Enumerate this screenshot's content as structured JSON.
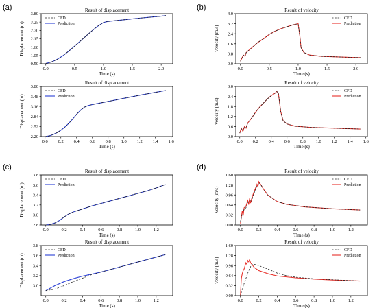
{
  "colors": {
    "cfd": "#222222",
    "prediction_disp": "#2a3fd6",
    "prediction_vel": "#e8302a"
  },
  "panels": [
    "(a)",
    "(b)",
    "(c)",
    "(d)"
  ],
  "chart_data": [
    {
      "panel": "(a)",
      "type": "line",
      "title": "Result of displacement",
      "xlabel": "Time (s)",
      "ylabel": "Displacement (m)",
      "xlim": [
        -0.08,
        2.2
      ],
      "ylim": [
        0.5,
        3.8
      ],
      "xticks": [
        0.0,
        0.5,
        1.0,
        1.5,
        2.0
      ],
      "xtick_labels": [
        "0.0",
        "0.5",
        "1.0",
        "1.5",
        "2.0"
      ],
      "yticks": [
        0.5,
        1.05,
        1.6,
        2.15,
        2.7,
        3.25,
        3.8
      ],
      "ytick_labels": [
        "0.50",
        "1.05",
        "1.60",
        "2.15",
        "2.70",
        "3.25",
        "3.80"
      ],
      "legend": "top-left",
      "series": [
        {
          "name": "CFD",
          "style": "dashed",
          "color": "#222222",
          "x": [
            0,
            0.1,
            0.2,
            0.3,
            0.4,
            0.5,
            0.6,
            0.7,
            0.8,
            0.9,
            1.0,
            1.05,
            1.1,
            1.2,
            1.4,
            1.6,
            1.8,
            2.0,
            2.08
          ],
          "y": [
            0.52,
            0.62,
            0.8,
            1.04,
            1.34,
            1.67,
            2.0,
            2.34,
            2.67,
            2.98,
            3.22,
            3.27,
            3.3,
            3.34,
            3.42,
            3.5,
            3.57,
            3.64,
            3.68
          ]
        },
        {
          "name": "Prediction",
          "style": "solid",
          "color": "#2a3fd6",
          "x": [
            0,
            0.1,
            0.2,
            0.3,
            0.4,
            0.5,
            0.6,
            0.7,
            0.8,
            0.9,
            1.0,
            1.05,
            1.1,
            1.2,
            1.4,
            1.6,
            1.8,
            2.0,
            2.08
          ],
          "y": [
            0.52,
            0.62,
            0.8,
            1.04,
            1.34,
            1.67,
            2.0,
            2.34,
            2.67,
            2.98,
            3.22,
            3.27,
            3.3,
            3.34,
            3.42,
            3.5,
            3.57,
            3.64,
            3.68
          ]
        }
      ]
    },
    {
      "panel": "(a)",
      "type": "line",
      "title": "Result of velocity",
      "xlabel": "Time (s)",
      "ylabel": "Velocity (m/s)",
      "xlim": [
        -0.08,
        2.2
      ],
      "ylim": [
        0.0,
        4.0
      ],
      "xticks": [
        0.0,
        0.5,
        1.0,
        1.5,
        2.0
      ],
      "xtick_labels": [
        "0.0",
        "0.5",
        "1.0",
        "1.5",
        "2.0"
      ],
      "yticks": [
        0.0,
        0.8,
        1.6,
        2.4,
        3.2,
        4.0
      ],
      "ytick_labels": [
        "0.0",
        "0.8",
        "1.6",
        "2.4",
        "3.2",
        "4.0"
      ],
      "legend": "top-right",
      "series": [
        {
          "name": "CFD",
          "style": "dashed",
          "color": "#222222",
          "x": [
            0,
            0.03,
            0.05,
            0.08,
            0.1,
            0.2,
            0.3,
            0.4,
            0.5,
            0.6,
            0.7,
            0.8,
            0.9,
            0.95,
            1.0,
            1.03,
            1.05,
            1.1,
            1.2,
            1.4,
            1.7,
            2.08
          ],
          "y": [
            0.2,
            0.5,
            0.7,
            0.6,
            0.9,
            1.3,
            1.7,
            2.0,
            2.35,
            2.6,
            2.8,
            2.95,
            3.1,
            3.15,
            3.2,
            2.2,
            1.3,
            0.9,
            0.7,
            0.6,
            0.55,
            0.5
          ]
        },
        {
          "name": "Prediction",
          "style": "solid",
          "color": "#e8302a",
          "x": [
            0,
            0.03,
            0.05,
            0.08,
            0.1,
            0.2,
            0.3,
            0.4,
            0.5,
            0.6,
            0.7,
            0.8,
            0.9,
            0.95,
            1.0,
            1.03,
            1.05,
            1.1,
            1.2,
            1.4,
            1.7,
            2.08
          ],
          "y": [
            0.2,
            0.5,
            0.7,
            0.6,
            0.9,
            1.3,
            1.7,
            2.0,
            2.35,
            2.6,
            2.8,
            2.95,
            3.1,
            3.15,
            3.2,
            2.2,
            1.3,
            0.9,
            0.7,
            0.6,
            0.55,
            0.5
          ]
        }
      ]
    },
    {
      "panel": "(b)",
      "type": "line",
      "title": "Result of displacement",
      "xlabel": "Time (s)",
      "ylabel": "Displacement (m)",
      "xlim": [
        -0.05,
        1.62
      ],
      "ylim": [
        2.2,
        3.8
      ],
      "xticks": [
        0.0,
        0.2,
        0.4,
        0.6,
        0.8,
        1.0,
        1.2,
        1.4,
        1.6
      ],
      "xtick_labels": [
        "0.0",
        "0.2",
        "0.4",
        "0.6",
        "0.8",
        "1.0",
        "1.2",
        "1.4",
        "1.6"
      ],
      "yticks": [
        2.2,
        2.52,
        2.84,
        3.16,
        3.48,
        3.8
      ],
      "ytick_labels": [
        "2.20",
        "2.52",
        "2.84",
        "3.16",
        "3.48",
        "3.80"
      ],
      "legend": "top-left",
      "series": [
        {
          "name": "CFD",
          "style": "dashed",
          "color": "#222222",
          "x": [
            0,
            0.05,
            0.1,
            0.15,
            0.2,
            0.25,
            0.3,
            0.35,
            0.4,
            0.45,
            0.5,
            0.55,
            0.6,
            0.8,
            1.0,
            1.2,
            1.4,
            1.53
          ],
          "y": [
            2.2,
            2.22,
            2.26,
            2.32,
            2.4,
            2.5,
            2.62,
            2.76,
            2.91,
            3.04,
            3.14,
            3.19,
            3.22,
            3.32,
            3.42,
            3.52,
            3.61,
            3.67
          ]
        },
        {
          "name": "Prediction",
          "style": "solid",
          "color": "#2a3fd6",
          "x": [
            0,
            0.05,
            0.1,
            0.15,
            0.2,
            0.25,
            0.3,
            0.35,
            0.4,
            0.45,
            0.5,
            0.55,
            0.6,
            0.8,
            1.0,
            1.2,
            1.4,
            1.53
          ],
          "y": [
            2.2,
            2.22,
            2.26,
            2.32,
            2.4,
            2.5,
            2.62,
            2.76,
            2.91,
            3.04,
            3.14,
            3.19,
            3.22,
            3.32,
            3.42,
            3.52,
            3.61,
            3.67
          ]
        }
      ]
    },
    {
      "panel": "(b)",
      "type": "line",
      "title": "Result of velocity",
      "xlabel": "Time (s)",
      "ylabel": "Velocity (m/s)",
      "xlim": [
        -0.05,
        1.62
      ],
      "ylim": [
        0.0,
        3.0
      ],
      "xticks": [
        0.0,
        0.2,
        0.4,
        0.6,
        0.8,
        1.0,
        1.2,
        1.4,
        1.6
      ],
      "xtick_labels": [
        "0.0",
        "0.2",
        "0.4",
        "0.6",
        "0.8",
        "1.0",
        "1.2",
        "1.4",
        "1.6"
      ],
      "yticks": [
        0.0,
        0.6,
        1.2,
        1.8,
        2.4,
        3.0
      ],
      "ytick_labels": [
        "0.0",
        "0.6",
        "1.2",
        "1.8",
        "2.4",
        "3.0"
      ],
      "legend": "top-right",
      "series": [
        {
          "name": "CFD",
          "style": "dashed",
          "color": "#222222",
          "x": [
            0,
            0.02,
            0.04,
            0.06,
            0.08,
            0.1,
            0.15,
            0.2,
            0.25,
            0.3,
            0.35,
            0.4,
            0.45,
            0.47,
            0.49,
            0.52,
            0.55,
            0.6,
            0.7,
            0.9,
            1.2,
            1.53
          ],
          "y": [
            0.2,
            0.5,
            0.3,
            0.6,
            0.5,
            0.8,
            1.1,
            1.45,
            1.75,
            2.0,
            2.25,
            2.45,
            2.6,
            2.7,
            2.6,
            1.5,
            0.95,
            0.75,
            0.62,
            0.55,
            0.5,
            0.45
          ]
        },
        {
          "name": "Prediction",
          "style": "solid",
          "color": "#e8302a",
          "x": [
            0,
            0.02,
            0.04,
            0.06,
            0.08,
            0.1,
            0.15,
            0.2,
            0.25,
            0.3,
            0.35,
            0.4,
            0.45,
            0.47,
            0.49,
            0.52,
            0.55,
            0.6,
            0.7,
            0.9,
            1.2,
            1.53
          ],
          "y": [
            0.2,
            0.5,
            0.3,
            0.6,
            0.5,
            0.8,
            1.1,
            1.45,
            1.75,
            2.0,
            2.25,
            2.45,
            2.6,
            2.7,
            2.6,
            1.5,
            0.95,
            0.75,
            0.62,
            0.55,
            0.5,
            0.45
          ]
        }
      ]
    },
    {
      "panel": "(c)",
      "type": "line",
      "title": "Result of displacement",
      "xlabel": "Time (s)",
      "ylabel": "Displacement (m)",
      "xlim": [
        -0.05,
        1.38
      ],
      "ylim": [
        2.8,
        3.8
      ],
      "xticks": [
        0.0,
        0.2,
        0.4,
        0.6,
        0.8,
        1.0,
        1.2
      ],
      "xtick_labels": [
        "0.0",
        "0.2",
        "0.4",
        "0.6",
        "0.8",
        "1.0",
        "1.2"
      ],
      "yticks": [
        2.8,
        3.0,
        3.2,
        3.4,
        3.6,
        3.8
      ],
      "ytick_labels": [
        "2.8",
        "3.0",
        "3.2",
        "3.4",
        "3.6",
        "3.8"
      ],
      "legend": "top-left",
      "series": [
        {
          "name": "CFD",
          "style": "dashed",
          "color": "#222222",
          "x": [
            0,
            0.05,
            0.1,
            0.15,
            0.2,
            0.25,
            0.3,
            0.4,
            0.5,
            0.6,
            0.7,
            0.8,
            0.9,
            1.0,
            1.1,
            1.2,
            1.3
          ],
          "y": [
            2.8,
            2.81,
            2.84,
            2.89,
            2.96,
            3.02,
            3.06,
            3.12,
            3.18,
            3.23,
            3.28,
            3.33,
            3.38,
            3.43,
            3.48,
            3.54,
            3.61
          ]
        },
        {
          "name": "Prediction",
          "style": "solid",
          "color": "#2a3fd6",
          "x": [
            0,
            0.05,
            0.1,
            0.15,
            0.2,
            0.25,
            0.3,
            0.4,
            0.5,
            0.6,
            0.7,
            0.8,
            0.9,
            1.0,
            1.1,
            1.2,
            1.3
          ],
          "y": [
            2.8,
            2.81,
            2.84,
            2.89,
            2.96,
            3.02,
            3.06,
            3.12,
            3.18,
            3.23,
            3.28,
            3.33,
            3.38,
            3.43,
            3.48,
            3.54,
            3.61
          ]
        }
      ]
    },
    {
      "panel": "(c)",
      "type": "line",
      "title": "Result of velocity",
      "xlabel": "Time (s)",
      "ylabel": "Velocity (m/s)",
      "xlim": [
        -0.05,
        1.38
      ],
      "ylim": [
        0.0,
        1.6
      ],
      "xticks": [
        0.0,
        0.2,
        0.4,
        0.6,
        0.8,
        1.0,
        1.2
      ],
      "xtick_labels": [
        "0.0",
        "0.2",
        "0.4",
        "0.6",
        "0.8",
        "1.0",
        "1.2"
      ],
      "yticks": [
        0.0,
        0.32,
        0.64,
        0.96,
        1.28,
        1.6
      ],
      "ytick_labels": [
        "0.00",
        "0.32",
        "0.64",
        "0.96",
        "1.28",
        "1.60"
      ],
      "legend": "top-right",
      "series": [
        {
          "name": "CFD",
          "style": "dashed",
          "color": "#222222",
          "x": [
            0,
            0.02,
            0.04,
            0.06,
            0.08,
            0.1,
            0.12,
            0.14,
            0.16,
            0.18,
            0.2,
            0.22,
            0.25,
            0.3,
            0.4,
            0.5,
            0.7,
            1.0,
            1.3
          ],
          "y": [
            0.1,
            0.35,
            0.5,
            0.55,
            0.7,
            0.8,
            0.75,
            0.95,
            1.1,
            1.25,
            1.35,
            1.3,
            1.15,
            0.95,
            0.75,
            0.66,
            0.58,
            0.52,
            0.48
          ]
        },
        {
          "name": "Prediction",
          "style": "solid",
          "color": "#e8302a",
          "x": [
            0,
            0.02,
            0.03,
            0.04,
            0.06,
            0.08,
            0.09,
            0.1,
            0.11,
            0.12,
            0.14,
            0.16,
            0.18,
            0.19,
            0.2,
            0.21,
            0.22,
            0.25,
            0.3,
            0.4,
            0.5,
            0.7,
            1.0,
            1.3
          ],
          "y": [
            0.05,
            0.45,
            0.3,
            0.55,
            0.6,
            0.78,
            0.65,
            0.85,
            0.7,
            0.82,
            1.0,
            1.15,
            1.3,
            1.22,
            1.38,
            1.33,
            1.3,
            1.15,
            0.95,
            0.75,
            0.66,
            0.58,
            0.52,
            0.48
          ]
        }
      ]
    },
    {
      "panel": "(d)",
      "type": "line",
      "title": "Result of displacement",
      "xlabel": "Time (s)",
      "ylabel": "Displacement (m)",
      "xlim": [
        -0.05,
        1.38
      ],
      "ylim": [
        2.8,
        3.8
      ],
      "xticks": [
        0.0,
        0.2,
        0.4,
        0.6,
        0.8,
        1.0,
        1.2
      ],
      "xtick_labels": [
        "0.0",
        "0.2",
        "0.4",
        "0.6",
        "0.8",
        "1.0",
        "1.2"
      ],
      "yticks": [
        3.0,
        3.2,
        3.4,
        3.6,
        3.8
      ],
      "ytick_labels": [
        "3.0",
        "3.2",
        "3.4",
        "3.6",
        "3.8"
      ],
      "legend": "top-left",
      "series": [
        {
          "name": "CFD",
          "style": "dashed",
          "color": "#222222",
          "x": [
            0,
            0.1,
            0.2,
            0.3,
            0.4,
            0.5,
            0.6,
            0.7,
            0.8,
            0.9,
            1.0,
            1.1,
            1.2,
            1.3
          ],
          "y": [
            2.9,
            2.93,
            3.0,
            3.08,
            3.15,
            3.22,
            3.27,
            3.32,
            3.37,
            3.42,
            3.47,
            3.52,
            3.57,
            3.62
          ]
        },
        {
          "name": "Prediction",
          "style": "solid",
          "color": "#2a3fd6",
          "x": [
            0,
            0.1,
            0.2,
            0.3,
            0.4,
            0.5,
            0.6,
            0.7,
            0.8,
            0.9,
            1.0,
            1.1,
            1.2,
            1.3
          ],
          "y": [
            2.9,
            3.0,
            3.08,
            3.14,
            3.19,
            3.23,
            3.27,
            3.32,
            3.37,
            3.42,
            3.47,
            3.52,
            3.57,
            3.62
          ]
        }
      ]
    },
    {
      "panel": "(d)",
      "type": "line",
      "title": "Result of velocity",
      "xlabel": "Time (s)",
      "ylabel": "Velocity (m/s)",
      "xlim": [
        -0.05,
        1.38
      ],
      "ylim": [
        0.0,
        1.6
      ],
      "xticks": [
        0.0,
        0.2,
        0.4,
        0.6,
        0.8,
        1.0,
        1.2
      ],
      "xtick_labels": [
        "0.0",
        "0.2",
        "0.4",
        "0.6",
        "0.8",
        "1.0",
        "1.2"
      ],
      "yticks": [
        0.0,
        0.32,
        0.64,
        0.96,
        1.28,
        1.6
      ],
      "ytick_labels": [
        "0.00",
        "0.32",
        "0.64",
        "0.96",
        "1.28",
        "1.60"
      ],
      "legend": "top-right",
      "series": [
        {
          "name": "CFD",
          "style": "dashed",
          "color": "#222222",
          "x": [
            0,
            0.03,
            0.06,
            0.09,
            0.12,
            0.15,
            0.2,
            0.3,
            0.4,
            0.5,
            0.6,
            0.8,
            1.0,
            1.3
          ],
          "y": [
            0.0,
            0.3,
            0.55,
            0.8,
            0.98,
            1.0,
            0.96,
            0.85,
            0.72,
            0.64,
            0.59,
            0.54,
            0.51,
            0.47
          ]
        },
        {
          "name": "Prediction",
          "style": "solid",
          "color": "#e8302a",
          "x": [
            0,
            0.01,
            0.02,
            0.03,
            0.04,
            0.05,
            0.06,
            0.07,
            0.08,
            0.09,
            0.1,
            0.11,
            0.13,
            0.15,
            0.2,
            0.3,
            0.4,
            0.6,
            0.8,
            1.0,
            1.3
          ],
          "y": [
            0.0,
            0.55,
            0.7,
            0.8,
            0.85,
            0.95,
            1.05,
            1.0,
            1.12,
            1.08,
            1.15,
            1.05,
            0.98,
            0.9,
            0.8,
            0.7,
            0.63,
            0.57,
            0.53,
            0.5,
            0.47
          ]
        }
      ]
    }
  ]
}
